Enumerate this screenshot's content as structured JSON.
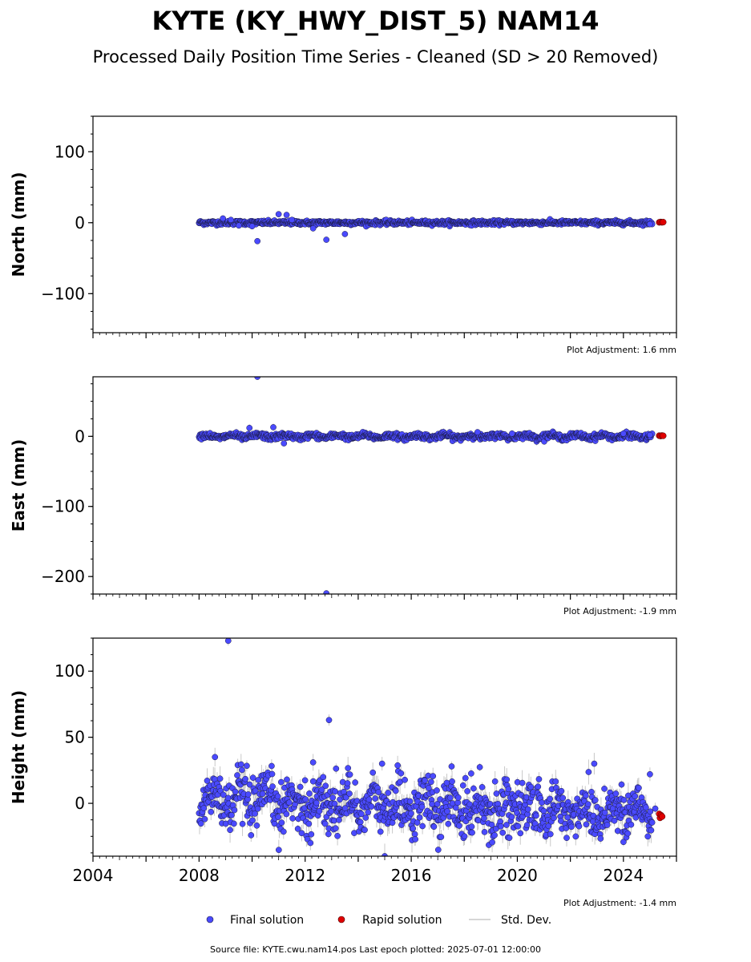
{
  "title": "KYTE (KY_HWY_DIST_5) NAM14",
  "subtitle": "Processed Daily Position Time Series - Cleaned (SD > 20 Removed)",
  "footer": "Source file: KYTE.cwu.nam14.pos  Last epoch plotted: 2025-07-01 12:00:00",
  "colors": {
    "final": "#4a4aff",
    "rapid": "#e00000",
    "stddev": "#c8c8c8",
    "marker_edge": "#1a1a40"
  },
  "legend": [
    {
      "name": "Final solution",
      "kind": "final-marker"
    },
    {
      "name": "Rapid solution",
      "kind": "rapid-marker"
    },
    {
      "name": "Std. Dev.",
      "kind": "stddev-line"
    }
  ],
  "chart_data": [
    {
      "type": "scatter",
      "id": "north",
      "ylabel": "North (mm)",
      "xlim": [
        2004,
        2026
      ],
      "ylim": [
        -155,
        150
      ],
      "yticks": [
        100,
        0,
        -100
      ],
      "ytick_labels": [
        "100",
        "0",
        "−100"
      ],
      "xtick_labels_visible": false,
      "adjustment": "Plot Adjustment: 1.6 mm",
      "noise": {
        "start": 2008.0,
        "end": 2025.1,
        "spread": 1.5,
        "err": 3
      },
      "outliers": [
        [
          2008.9,
          6
        ],
        [
          2009.2,
          4
        ],
        [
          2009.5,
          -4
        ],
        [
          2010.0,
          -5
        ],
        [
          2010.2,
          -26
        ],
        [
          2011.0,
          12
        ],
        [
          2011.3,
          11
        ],
        [
          2011.5,
          4
        ],
        [
          2012.3,
          -8
        ],
        [
          2012.8,
          -24
        ],
        [
          2013.5,
          -16
        ],
        [
          2025.0,
          -2
        ]
      ],
      "rapid": [
        [
          2025.35,
          0.5
        ],
        [
          2025.4,
          1.0
        ],
        [
          2025.45,
          0.5
        ],
        [
          2025.5,
          0.8
        ]
      ]
    },
    {
      "type": "scatter",
      "id": "east",
      "ylabel": "East (mm)",
      "xlim": [
        2004,
        2026
      ],
      "ylim": [
        -225,
        85
      ],
      "yticks": [
        0,
        -100,
        -200
      ],
      "ytick_labels": [
        "0",
        "−100",
        "−200"
      ],
      "xtick_labels_visible": false,
      "adjustment": "Plot Adjustment: -1.9 mm",
      "noise": {
        "start": 2008.0,
        "end": 2025.1,
        "spread": 2,
        "err": 4
      },
      "outliers": [
        [
          2010.2,
          85
        ],
        [
          2009.9,
          12
        ],
        [
          2010.8,
          13
        ],
        [
          2011.2,
          -10
        ],
        [
          2012.8,
          -224
        ],
        [
          2018.5,
          6
        ],
        [
          2019.8,
          4
        ],
        [
          2024.0,
          4
        ],
        [
          2025.0,
          2
        ]
      ],
      "rapid": [
        [
          2025.35,
          1.0
        ],
        [
          2025.4,
          0.5
        ],
        [
          2025.45,
          1.2
        ],
        [
          2025.5,
          0.8
        ]
      ]
    },
    {
      "type": "scatter",
      "id": "height",
      "ylabel": "Height (mm)",
      "xlim": [
        2004,
        2026
      ],
      "ylim": [
        -40,
        125
      ],
      "yticks": [
        100,
        50,
        0
      ],
      "ytick_labels": [
        "100",
        "50",
        "0"
      ],
      "xticks": [
        2004,
        2008,
        2012,
        2016,
        2020,
        2024
      ],
      "xtick_labels": [
        "2004",
        "2008",
        "2012",
        "2016",
        "2020",
        "2024"
      ],
      "xtick_labels_visible": true,
      "adjustment": "Plot Adjustment: -1.4 mm",
      "noise": {
        "start": 2008.0,
        "end": 2025.1,
        "spread": 10,
        "err": 7
      },
      "outliers": [
        [
          2009.1,
          123
        ],
        [
          2012.9,
          63
        ],
        [
          2008.6,
          35
        ],
        [
          2012.2,
          -30
        ],
        [
          2012.3,
          31
        ],
        [
          2014.9,
          30
        ],
        [
          2015.0,
          -40
        ],
        [
          2019.6,
          18
        ],
        [
          2022.9,
          30
        ],
        [
          2025.0,
          22
        ],
        [
          2025.2,
          -4
        ]
      ],
      "rapid": [
        [
          2025.35,
          -8
        ],
        [
          2025.38,
          -11
        ],
        [
          2025.42,
          -9
        ],
        [
          2025.46,
          -10
        ]
      ]
    }
  ]
}
